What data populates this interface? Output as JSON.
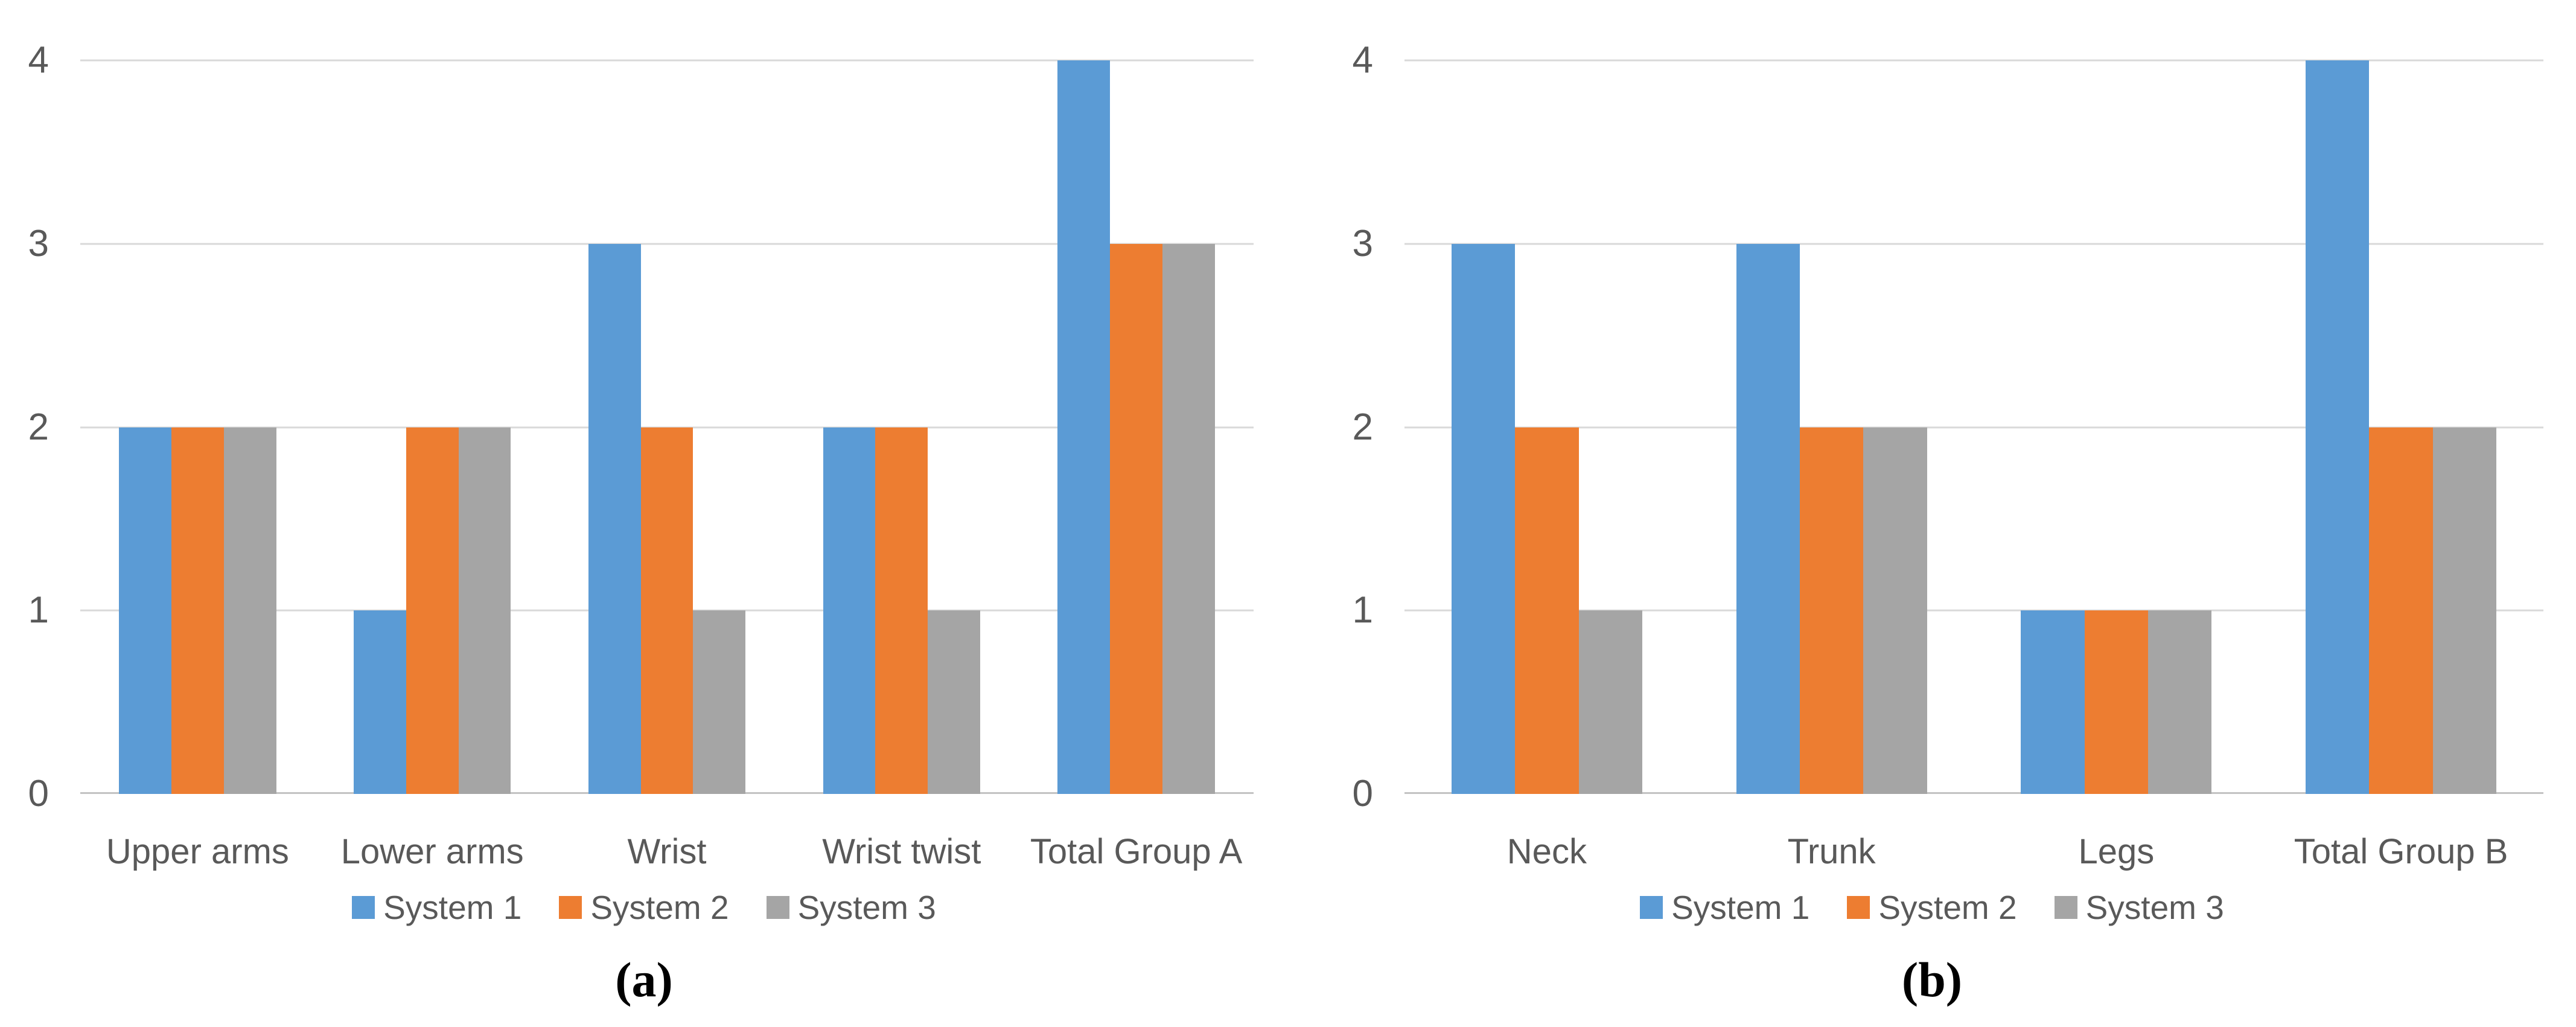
{
  "figure": {
    "background": "#ffffff",
    "text_color": "#595959",
    "gridline_color": "#D9D9D9",
    "axis_line_color": "#C3C3C3",
    "caption_color": "#000000"
  },
  "chart_data": [
    {
      "id": "a",
      "type": "bar",
      "title": "",
      "caption": "(a)",
      "categories": [
        "Upper arms",
        "Lower arms",
        "Wrist",
        "Wrist twist",
        "Total Group A"
      ],
      "series": [
        {
          "name": "System 1",
          "color": "#5B9BD5",
          "values": [
            2,
            1,
            3,
            2,
            4
          ]
        },
        {
          "name": "System 2",
          "color": "#ED7D31",
          "values": [
            2,
            2,
            2,
            2,
            3
          ]
        },
        {
          "name": "System 3",
          "color": "#A5A5A5",
          "values": [
            2,
            2,
            1,
            1,
            3
          ]
        }
      ],
      "xlabel": "",
      "ylabel": "",
      "ylim": [
        0,
        4
      ],
      "yticks": [
        0,
        1,
        2,
        3,
        4
      ],
      "grid": true,
      "legend_position": "bottom"
    },
    {
      "id": "b",
      "type": "bar",
      "title": "",
      "caption": "(b)",
      "categories": [
        "Neck",
        "Trunk",
        "Legs",
        "Total Group B"
      ],
      "series": [
        {
          "name": "System 1",
          "color": "#5B9BD5",
          "values": [
            3,
            3,
            1,
            4
          ]
        },
        {
          "name": "System 2",
          "color": "#ED7D31",
          "values": [
            2,
            2,
            1,
            2
          ]
        },
        {
          "name": "System 3",
          "color": "#A5A5A5",
          "values": [
            1,
            2,
            1,
            2
          ]
        }
      ],
      "xlabel": "",
      "ylabel": "",
      "ylim": [
        0,
        4
      ],
      "yticks": [
        0,
        1,
        2,
        3,
        4
      ],
      "grid": true,
      "legend_position": "bottom"
    }
  ]
}
